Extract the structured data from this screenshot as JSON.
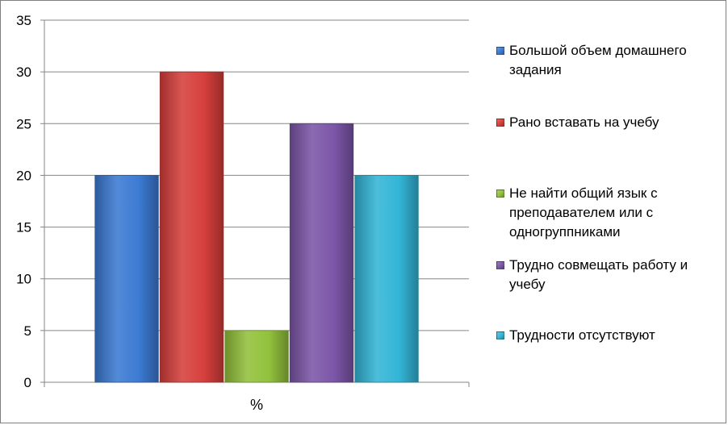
{
  "chart_data": {
    "type": "bar",
    "categories": [
      "%"
    ],
    "xlabel": "%",
    "ylim": [
      0,
      35
    ],
    "yticks": [
      0,
      5,
      10,
      15,
      20,
      25,
      30,
      35
    ],
    "grid": true,
    "legend_position": "right",
    "series": [
      {
        "name": "Большой объем домашнего задания",
        "values": [
          20
        ],
        "color": "#3c7ad3"
      },
      {
        "name": "Рано вставать на учебу",
        "values": [
          30
        ],
        "color": "#d63f3c"
      },
      {
        "name": "Не найти общий язык с преподавателем или с одногруппниками",
        "values": [
          5
        ],
        "color": "#92c13c"
      },
      {
        "name": "Трудно совмещать работу и учебу",
        "values": [
          25
        ],
        "color": "#7c56a8"
      },
      {
        "name": "Трудности отсутствуют",
        "values": [
          20
        ],
        "color": "#33b5d6"
      }
    ]
  }
}
